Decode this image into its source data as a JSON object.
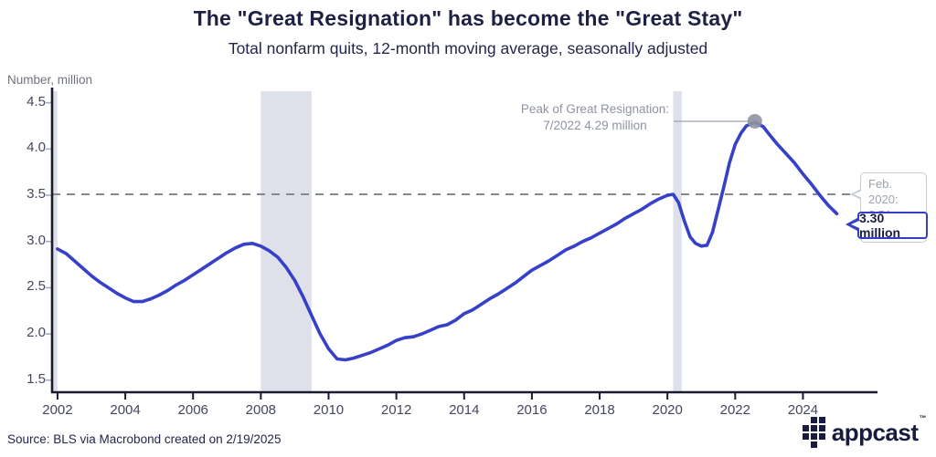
{
  "colors": {
    "line": "#3640C8",
    "band": "#DEE1EA",
    "dashed": "#85888F",
    "axis": "#1A1B2E",
    "y_tick": "#A9ACC0",
    "dot": "#8D93A2",
    "leader": "#9AA0AC",
    "title": "#1E2144",
    "gray_text": "#8E93A5",
    "latest_border": "#333FC5"
  },
  "logo": {
    "text": "appcast",
    "trademark": "™"
  },
  "footer": {
    "source": "Source: BLS via Macrobond created on 2/19/2025"
  },
  "chart_data": {
    "type": "line",
    "title": "The \"Great Resignation\" has become the \"Great Stay\"",
    "subtitle": "Total nonfarm quits, 12-month moving average, seasonally adjusted",
    "unit_label": "Number, million",
    "xlabel": "",
    "ylabel": "Number, million",
    "x_ticks": [
      2002,
      2004,
      2006,
      2008,
      2010,
      2012,
      2014,
      2016,
      2018,
      2020,
      2022,
      2024
    ],
    "y_ticks": [
      1.5,
      2.0,
      2.5,
      3.0,
      3.5,
      4.0,
      4.5
    ],
    "xlim": [
      2001.84,
      2026.2
    ],
    "ylim": [
      1.37,
      4.625
    ],
    "grid": false,
    "legend": "none",
    "reference_line": {
      "value": 3.51,
      "label_line1": "Feb. 2020:",
      "label_line2": "3.51 million"
    },
    "peak_annotation": {
      "x": 2022.58,
      "value": 4.29,
      "line1": "Peak of Great Resignation:",
      "line2": "7/2022 4.29 million"
    },
    "latest_label": {
      "x": 2025.0,
      "value": 3.3,
      "text": "3.30 million"
    },
    "recession_bands": [
      [
        2001.87,
        2002.0
      ],
      [
        2008.0,
        2009.5
      ],
      [
        2020.17,
        2020.42
      ]
    ],
    "series": [
      {
        "name": "Total nonfarm quits, 12-month moving average",
        "points": [
          [
            2002.0,
            2.92
          ],
          [
            2002.25,
            2.87
          ],
          [
            2002.5,
            2.79
          ],
          [
            2002.75,
            2.71
          ],
          [
            2003.0,
            2.63
          ],
          [
            2003.25,
            2.56
          ],
          [
            2003.5,
            2.5
          ],
          [
            2003.75,
            2.44
          ],
          [
            2004.0,
            2.39
          ],
          [
            2004.25,
            2.35
          ],
          [
            2004.5,
            2.35
          ],
          [
            2004.75,
            2.38
          ],
          [
            2005.0,
            2.42
          ],
          [
            2005.25,
            2.47
          ],
          [
            2005.5,
            2.53
          ],
          [
            2005.75,
            2.58
          ],
          [
            2006.0,
            2.64
          ],
          [
            2006.25,
            2.7
          ],
          [
            2006.5,
            2.76
          ],
          [
            2006.75,
            2.82
          ],
          [
            2007.0,
            2.88
          ],
          [
            2007.25,
            2.93
          ],
          [
            2007.5,
            2.97
          ],
          [
            2007.75,
            2.98
          ],
          [
            2008.0,
            2.95
          ],
          [
            2008.25,
            2.9
          ],
          [
            2008.5,
            2.83
          ],
          [
            2008.75,
            2.72
          ],
          [
            2009.0,
            2.58
          ],
          [
            2009.25,
            2.4
          ],
          [
            2009.5,
            2.2
          ],
          [
            2009.75,
            2.0
          ],
          [
            2010.0,
            1.84
          ],
          [
            2010.25,
            1.73
          ],
          [
            2010.5,
            1.72
          ],
          [
            2010.75,
            1.74
          ],
          [
            2011.0,
            1.77
          ],
          [
            2011.25,
            1.8
          ],
          [
            2011.5,
            1.84
          ],
          [
            2011.75,
            1.88
          ],
          [
            2012.0,
            1.93
          ],
          [
            2012.25,
            1.96
          ],
          [
            2012.5,
            1.97
          ],
          [
            2012.75,
            2.0
          ],
          [
            2013.0,
            2.04
          ],
          [
            2013.25,
            2.08
          ],
          [
            2013.5,
            2.1
          ],
          [
            2013.75,
            2.15
          ],
          [
            2014.0,
            2.22
          ],
          [
            2014.25,
            2.26
          ],
          [
            2014.5,
            2.32
          ],
          [
            2014.75,
            2.38
          ],
          [
            2015.0,
            2.43
          ],
          [
            2015.25,
            2.49
          ],
          [
            2015.5,
            2.55
          ],
          [
            2015.75,
            2.62
          ],
          [
            2016.0,
            2.69
          ],
          [
            2016.25,
            2.74
          ],
          [
            2016.5,
            2.79
          ],
          [
            2016.75,
            2.85
          ],
          [
            2017.0,
            2.91
          ],
          [
            2017.25,
            2.95
          ],
          [
            2017.5,
            3.0
          ],
          [
            2017.75,
            3.04
          ],
          [
            2018.0,
            3.09
          ],
          [
            2018.25,
            3.14
          ],
          [
            2018.5,
            3.19
          ],
          [
            2018.75,
            3.25
          ],
          [
            2019.0,
            3.3
          ],
          [
            2019.25,
            3.35
          ],
          [
            2019.5,
            3.41
          ],
          [
            2019.75,
            3.46
          ],
          [
            2020.0,
            3.5
          ],
          [
            2020.17,
            3.51
          ],
          [
            2020.33,
            3.42
          ],
          [
            2020.5,
            3.22
          ],
          [
            2020.67,
            3.05
          ],
          [
            2020.83,
            2.98
          ],
          [
            2021.0,
            2.95
          ],
          [
            2021.17,
            2.96
          ],
          [
            2021.33,
            3.1
          ],
          [
            2021.5,
            3.35
          ],
          [
            2021.67,
            3.6
          ],
          [
            2021.83,
            3.85
          ],
          [
            2022.0,
            4.05
          ],
          [
            2022.17,
            4.17
          ],
          [
            2022.33,
            4.25
          ],
          [
            2022.58,
            4.29
          ],
          [
            2022.83,
            4.24
          ],
          [
            2023.0,
            4.16
          ],
          [
            2023.25,
            4.05
          ],
          [
            2023.5,
            3.95
          ],
          [
            2023.75,
            3.85
          ],
          [
            2024.0,
            3.73
          ],
          [
            2024.25,
            3.62
          ],
          [
            2024.5,
            3.5
          ],
          [
            2024.75,
            3.39
          ],
          [
            2025.0,
            3.3
          ]
        ]
      }
    ]
  }
}
